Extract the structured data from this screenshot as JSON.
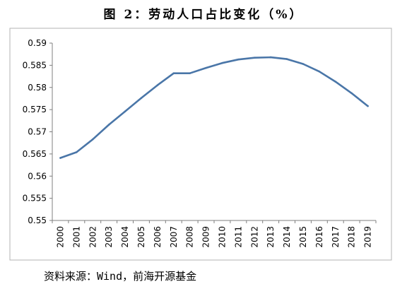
{
  "title": "图 2：劳动人口占比变化（%）",
  "source": "资料来源：Wind，前海开源基金",
  "colors": {
    "series": "#4a76a8"
  },
  "chart_data": {
    "type": "line",
    "title": "图 2：劳动人口占比变化（%）",
    "xlabel": "",
    "ylabel": "",
    "categories": [
      "2000",
      "2001",
      "2002",
      "2003",
      "2004",
      "2005",
      "2006",
      "2007",
      "2008",
      "2009",
      "2010",
      "2011",
      "2012",
      "2013",
      "2014",
      "2015",
      "2016",
      "2017",
      "2018",
      "2019"
    ],
    "y_ticks": [
      "0.59",
      "0.585",
      "0.58",
      "0.575",
      "0.57",
      "0.565",
      "0.56",
      "0.555",
      "0.55"
    ],
    "ylim": [
      0.55,
      0.59
    ],
    "grid": false,
    "legend": "none",
    "series": [
      {
        "values": [
          0.5641,
          0.5654,
          0.5683,
          0.5716,
          0.5746,
          0.5776,
          0.5805,
          0.5832,
          0.5832,
          0.5844,
          0.5855,
          0.5863,
          0.5867,
          0.5868,
          0.5864,
          0.5853,
          0.5836,
          0.5813,
          0.5787,
          0.5758
        ]
      }
    ]
  }
}
